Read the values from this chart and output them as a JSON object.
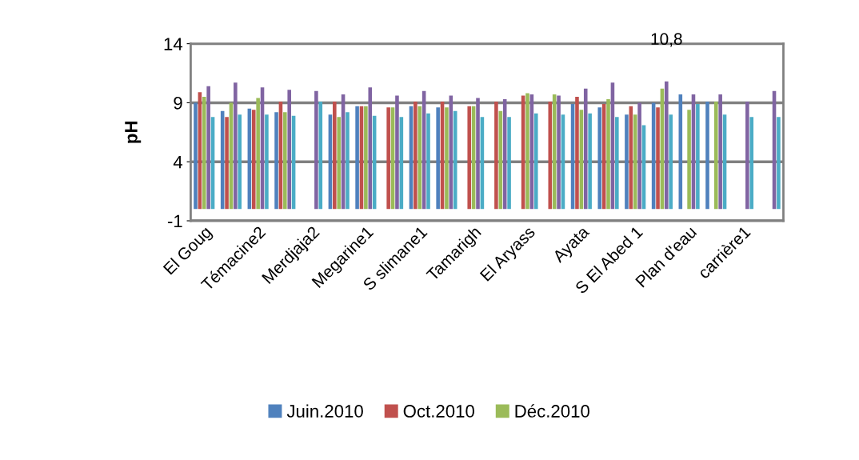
{
  "chart_data": {
    "type": "bar",
    "ylabel": "pH",
    "categories": [
      "El Goug",
      null,
      "Témacine2",
      null,
      "Merdjaja2",
      null,
      "Megarine1",
      null,
      "S slimane1",
      null,
      "Tamarigh",
      null,
      "El Aryass",
      null,
      "Ayata",
      null,
      "S El Abed 1",
      null,
      "Plan d'eau",
      null,
      "carrière1",
      null
    ],
    "series": [
      {
        "name": "Juin.2010",
        "color": "#4f81bd",
        "values": [
          9.0,
          8.3,
          8.5,
          8.2,
          null,
          8.0,
          8.7,
          null,
          8.7,
          8.6,
          null,
          null,
          null,
          null,
          8.9,
          8.6,
          8.0,
          9.0,
          9.7,
          9.1,
          null,
          null
        ]
      },
      {
        "name": "Oct.2010",
        "color": "#c0504d",
        "values": [
          9.9,
          7.8,
          8.4,
          9.1,
          null,
          9.1,
          8.7,
          8.6,
          9.1,
          9.1,
          8.7,
          9.1,
          9.6,
          9.1,
          9.5,
          8.9,
          8.7,
          8.6,
          null,
          null,
          null,
          null
        ]
      },
      {
        "name": "Déc.2010",
        "color": "#9bbb59",
        "values": [
          9.5,
          9.0,
          9.4,
          8.2,
          null,
          7.8,
          8.7,
          8.6,
          8.7,
          8.6,
          8.7,
          8.3,
          9.8,
          9.7,
          8.4,
          9.3,
          8.0,
          10.2,
          8.4,
          9.1,
          null,
          null
        ]
      },
      {
        "color": "#8064a2",
        "values": [
          10.4,
          10.7,
          10.3,
          10.1,
          10.0,
          9.7,
          10.3,
          9.6,
          10.0,
          9.6,
          9.4,
          9.3,
          9.7,
          9.6,
          10.2,
          10.7,
          9.0,
          10.8,
          9.7,
          9.7,
          9.1,
          10.0
        ],
        "value_labels": [
          null,
          null,
          null,
          null,
          null,
          null,
          null,
          null,
          null,
          null,
          null,
          null,
          null,
          null,
          null,
          null,
          null,
          "10,8",
          null,
          null,
          null,
          null
        ]
      },
      {
        "color": "#4bacc6",
        "values": [
          7.8,
          8.0,
          8.0,
          7.9,
          9.1,
          8.2,
          7.9,
          7.8,
          8.1,
          8.3,
          7.8,
          7.8,
          8.1,
          8.0,
          8.1,
          7.8,
          7.1,
          8.0,
          8.9,
          8.0,
          7.8,
          7.8
        ]
      }
    ],
    "ylim": [
      -1,
      14
    ],
    "yticks": [
      -1,
      4,
      9,
      14
    ],
    "grid": "y",
    "legend": "bottom"
  }
}
